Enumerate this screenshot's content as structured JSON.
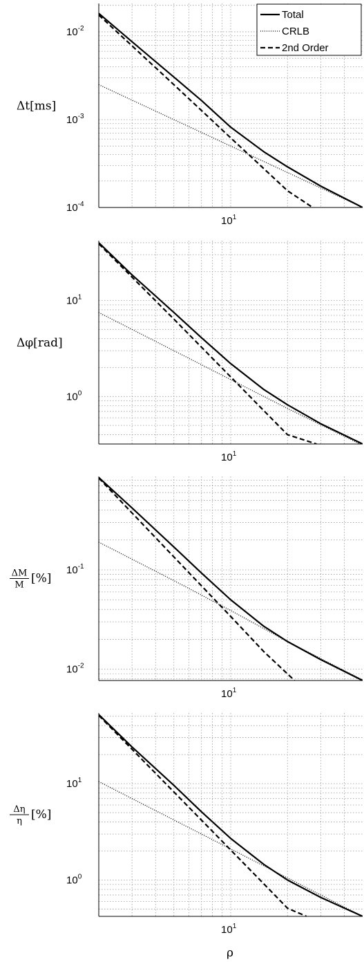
{
  "chart_data": [
    {
      "type": "line",
      "ylabel": "Δt[ms]",
      "xlabel": "",
      "xscale": "log",
      "yscale": "log",
      "grid": true,
      "xlim": [
        2,
        50
      ],
      "ylim": [
        0.0001,
        0.021
      ],
      "xticks": [
        {
          "value": 10,
          "base": "10",
          "exp": "1"
        }
      ],
      "yticks": [
        {
          "value": 0.01,
          "base": "10",
          "exp": "-2"
        },
        {
          "value": 0.001,
          "base": "10",
          "exp": "-3"
        },
        {
          "value": 0.0001,
          "base": "10",
          "exp": "-4"
        }
      ],
      "legend": {
        "placement": "top-right",
        "entries": [
          "Total",
          "CRLB",
          "2nd Order"
        ]
      },
      "series": [
        {
          "name": "Total",
          "style": "solid",
          "x": [
            2,
            3,
            5,
            7,
            10,
            15,
            20,
            30,
            50
          ],
          "y": [
            0.0162,
            0.0077,
            0.00305,
            0.00165,
            0.00082,
            0.00043,
            0.00029,
            0.000175,
            0.0001
          ]
        },
        {
          "name": "CRLB",
          "style": "dotted",
          "x": [
            2,
            5,
            10,
            20,
            50
          ],
          "y": [
            0.0025,
            0.001,
            0.0005,
            0.00025,
            0.0001
          ]
        },
        {
          "name": "2nd Order",
          "style": "dashed",
          "x": [
            2,
            5,
            10,
            15,
            20,
            27.2
          ],
          "y": [
            0.0155,
            0.0025,
            0.00062,
            0.000276,
            0.000155,
            0.0001
          ]
        }
      ]
    },
    {
      "type": "line",
      "ylabel": "Δφ[rad]",
      "xlabel": "",
      "xscale": "log",
      "yscale": "log",
      "grid": true,
      "xlim": [
        2,
        50
      ],
      "ylim": [
        0.32,
        42
      ],
      "xticks": [
        {
          "value": 10,
          "base": "10",
          "exp": "1"
        }
      ],
      "yticks": [
        {
          "value": 10,
          "base": "10",
          "exp": "1"
        },
        {
          "value": 1,
          "base": "10",
          "exp": "0"
        }
      ],
      "legend": null,
      "series": [
        {
          "name": "Total",
          "style": "solid",
          "x": [
            2,
            3,
            5,
            7,
            10,
            15,
            20,
            30,
            50
          ],
          "y": [
            40,
            18.5,
            7.5,
            4.1,
            2.2,
            1.18,
            0.82,
            0.52,
            0.32
          ]
        },
        {
          "name": "CRLB",
          "style": "dotted",
          "x": [
            2,
            5,
            10,
            20,
            50
          ],
          "y": [
            7.5,
            3.0,
            1.5,
            0.75,
            0.31
          ]
        },
        {
          "name": "2nd Order",
          "style": "dashed",
          "x": [
            2,
            5,
            10,
            15,
            20,
            28.5
          ],
          "y": [
            39,
            6.4,
            1.6,
            0.71,
            0.4,
            0.32
          ]
        }
      ]
    },
    {
      "type": "line",
      "ylabel": "ΔM/M[%]",
      "xlabel": "",
      "xscale": "log",
      "yscale": "log",
      "grid": true,
      "xlim": [
        2,
        50
      ],
      "ylim": [
        0.0077,
        0.87
      ],
      "xticks": [
        {
          "value": 10,
          "base": "10",
          "exp": "1"
        }
      ],
      "yticks": [
        {
          "value": 0.1,
          "base": "10",
          "exp": "-1"
        },
        {
          "value": 0.01,
          "base": "10",
          "exp": "-2"
        }
      ],
      "legend": null,
      "series": [
        {
          "name": "Total",
          "style": "solid",
          "x": [
            2,
            3,
            5,
            7,
            10,
            15,
            20,
            30,
            50
          ],
          "y": [
            0.85,
            0.42,
            0.17,
            0.093,
            0.05,
            0.027,
            0.019,
            0.0125,
            0.0077
          ]
        },
        {
          "name": "CRLB",
          "style": "dotted",
          "x": [
            2,
            5,
            10,
            20,
            50
          ],
          "y": [
            0.19,
            0.078,
            0.039,
            0.019,
            0.0078
          ]
        },
        {
          "name": "2nd Order",
          "style": "dashed",
          "x": [
            2,
            5,
            10,
            15,
            21.8
          ],
          "y": [
            0.84,
            0.135,
            0.034,
            0.015,
            0.0077
          ]
        }
      ]
    },
    {
      "type": "line",
      "ylabel": "Δη/η[%]",
      "xlabel": "ρ",
      "xscale": "log",
      "yscale": "log",
      "grid": true,
      "xlim": [
        2,
        50
      ],
      "ylim": [
        0.42,
        54
      ],
      "xticks": [
        {
          "value": 10,
          "base": "10",
          "exp": "1"
        }
      ],
      "yticks": [
        {
          "value": 10,
          "base": "10",
          "exp": "1"
        },
        {
          "value": 1,
          "base": "10",
          "exp": "0"
        }
      ],
      "legend": null,
      "series": [
        {
          "name": "Total",
          "style": "solid",
          "x": [
            2,
            3,
            5,
            7,
            10,
            15,
            20,
            30,
            50
          ],
          "y": [
            52,
            24,
            9.6,
            5.1,
            2.7,
            1.45,
            1.0,
            0.66,
            0.42
          ]
        },
        {
          "name": "CRLB",
          "style": "dotted",
          "x": [
            2,
            5,
            10,
            20,
            50
          ],
          "y": [
            10.5,
            4.2,
            2.1,
            1.05,
            0.42
          ]
        },
        {
          "name": "2nd Order",
          "style": "dashed",
          "x": [
            2,
            5,
            10,
            15,
            20,
            25.2
          ],
          "y": [
            51,
            8.2,
            2.05,
            0.91,
            0.51,
            0.42
          ]
        }
      ]
    }
  ]
}
